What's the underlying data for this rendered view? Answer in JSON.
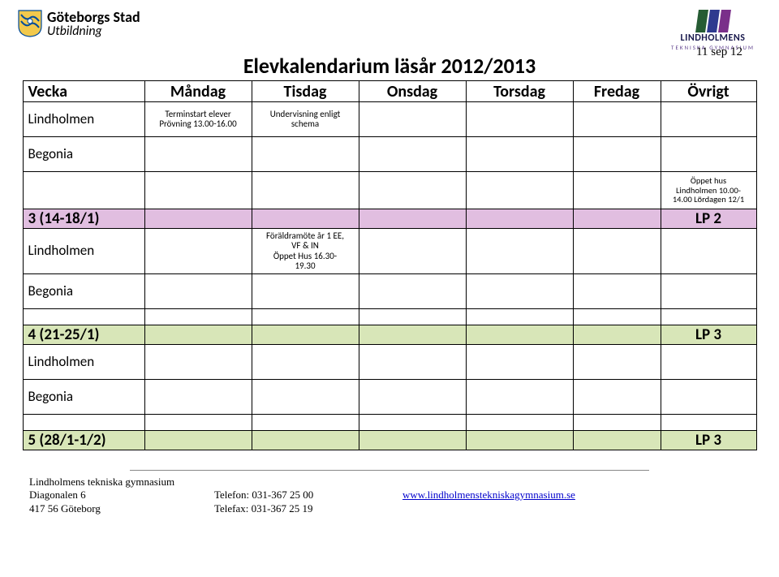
{
  "header": {
    "left": {
      "line1": "Göteborgs Stad",
      "line2": "Utbildning"
    },
    "right": {
      "line1": "LINDHOLMENS",
      "line2": "TEKNISKA GYMNASIUM"
    },
    "date": "11 sep 12",
    "title": "Elevkalendarium läsår 2012/2013"
  },
  "columns": [
    "Vecka",
    "Måndag",
    "Tisdag",
    "Onsdag",
    "Torsdag",
    "Fredag",
    "Övrigt"
  ],
  "colors": {
    "week_lp2_bg": "#e1bee0",
    "week_lp3_bg": "#d8e6b8",
    "crest_blue": "#004b9b",
    "crest_gold": "#f2c94c",
    "bar1": "#265c34",
    "bar2": "#2e3a8f",
    "bar3": "#7a2f8a"
  },
  "rows": {
    "r1": {
      "label": "Lindholmen",
      "mon": "Terminstart elever\nPrövning 13.00-16.00",
      "tue": "Undervisning enligt\nschema"
    },
    "r2": {
      "label": "Begonia"
    },
    "note1": "Öppet hus\nLindholmen 10.00-\n14.00 Lördagen 12/1",
    "w1": {
      "wk": "3 (14-18/1)",
      "ov": "LP 2"
    },
    "r3": {
      "label": "Lindholmen",
      "tue": "Föräldramöte år 1 EE,\nVF & IN\nÖppet Hus 16.30-\n19.30"
    },
    "r4": {
      "label": "Begonia"
    },
    "w2": {
      "wk": "4 (21-25/1)",
      "ov": "LP 3"
    },
    "r5": {
      "label": "Lindholmen"
    },
    "r6": {
      "label": "Begonia"
    },
    "w3": {
      "wk": "5 (28/1-1/2)",
      "ov": "LP 3"
    }
  },
  "footer": {
    "c1": {
      "l1": "Lindholmens tekniska gymnasium",
      "l2": "Diagonalen 6",
      "l3": "417 56 Göteborg"
    },
    "c2": {
      "l1": "Telefon: 031-367 25 00",
      "l2": "Telefax: 031-367 25 19"
    },
    "c3": {
      "link": "www.lindholmenstekniskagymnasium.se"
    }
  }
}
